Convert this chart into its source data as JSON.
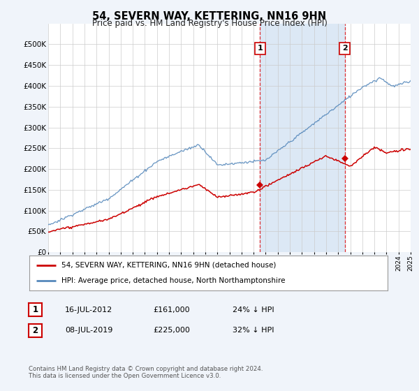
{
  "title": "54, SEVERN WAY, KETTERING, NN16 9HN",
  "subtitle": "Price paid vs. HM Land Registry's House Price Index (HPI)",
  "ylim": [
    0,
    550000
  ],
  "yticks": [
    0,
    50000,
    100000,
    150000,
    200000,
    250000,
    300000,
    350000,
    400000,
    450000,
    500000
  ],
  "ytick_labels": [
    "£0",
    "£50K",
    "£100K",
    "£150K",
    "£200K",
    "£250K",
    "£300K",
    "£350K",
    "£400K",
    "£450K",
    "£500K"
  ],
  "hpi_color": "#5588bb",
  "price_color": "#cc0000",
  "marker_color": "#cc0000",
  "bg_color": "#f0f4fa",
  "plot_bg": "#ffffff",
  "grid_color": "#cccccc",
  "shaded_color": "#dce8f5",
  "legend_label_red": "54, SEVERN WAY, KETTERING, NN16 9HN (detached house)",
  "legend_label_blue": "HPI: Average price, detached house, North Northamptonshire",
  "footnote": "Contains HM Land Registry data © Crown copyright and database right 2024.\nThis data is licensed under the Open Government Licence v3.0.",
  "annotation1": {
    "num": "1",
    "date": "16-JUL-2012",
    "price": "£161,000",
    "hpi": "24% ↓ HPI"
  },
  "annotation2": {
    "num": "2",
    "date": "08-JUL-2019",
    "price": "£225,000",
    "hpi": "32% ↓ HPI"
  },
  "marker1_x": 2012.54,
  "marker1_y": 161000,
  "marker2_x": 2019.54,
  "marker2_y": 225000,
  "shade_x1": 2012.54,
  "shade_x2": 2019.54,
  "xmin": 1995,
  "xmax": 2025
}
